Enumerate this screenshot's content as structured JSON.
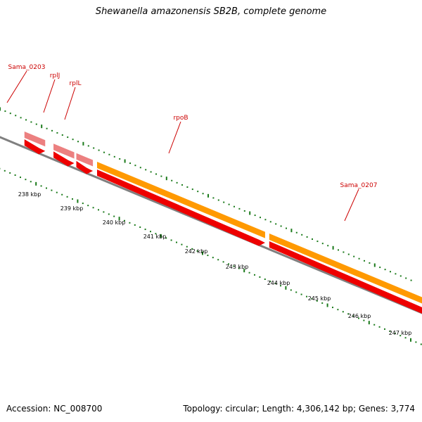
{
  "title": "Shewanella amazonensis SB2B, complete genome",
  "footer": {
    "accession": "Accession: NC_008700",
    "topology": "Topology: circular; Length: 4,306,142 bp; Genes: 3,774"
  },
  "colors": {
    "cds": "#ee0000",
    "cds_light": "#ec8080",
    "gene": "#ff9900",
    "backbone": "#808080",
    "ticks": "#1a7a1a",
    "label": "#cc0000"
  },
  "genes": [
    {
      "name": "Sama_0203",
      "start_kbp": 237.0,
      "end_kbp": 237.5
    },
    {
      "name": "rplJ",
      "start_kbp": 237.7,
      "end_kbp": 238.2
    },
    {
      "name": "rplL",
      "start_kbp": 238.25,
      "end_kbp": 238.65
    },
    {
      "name": "rpoB",
      "start_kbp": 238.75,
      "end_kbp": 242.8
    },
    {
      "name": "Sama_0207",
      "start_kbp": 242.9,
      "end_kbp": 247.2
    }
  ],
  "scale_labels": [
    "238 kbp",
    "239 kbp",
    "240 kbp",
    "241 kbp",
    "242 kbp",
    "243 kbp",
    "244 kbp",
    "245 kbp",
    "246 kbp",
    "247 kbp"
  ]
}
